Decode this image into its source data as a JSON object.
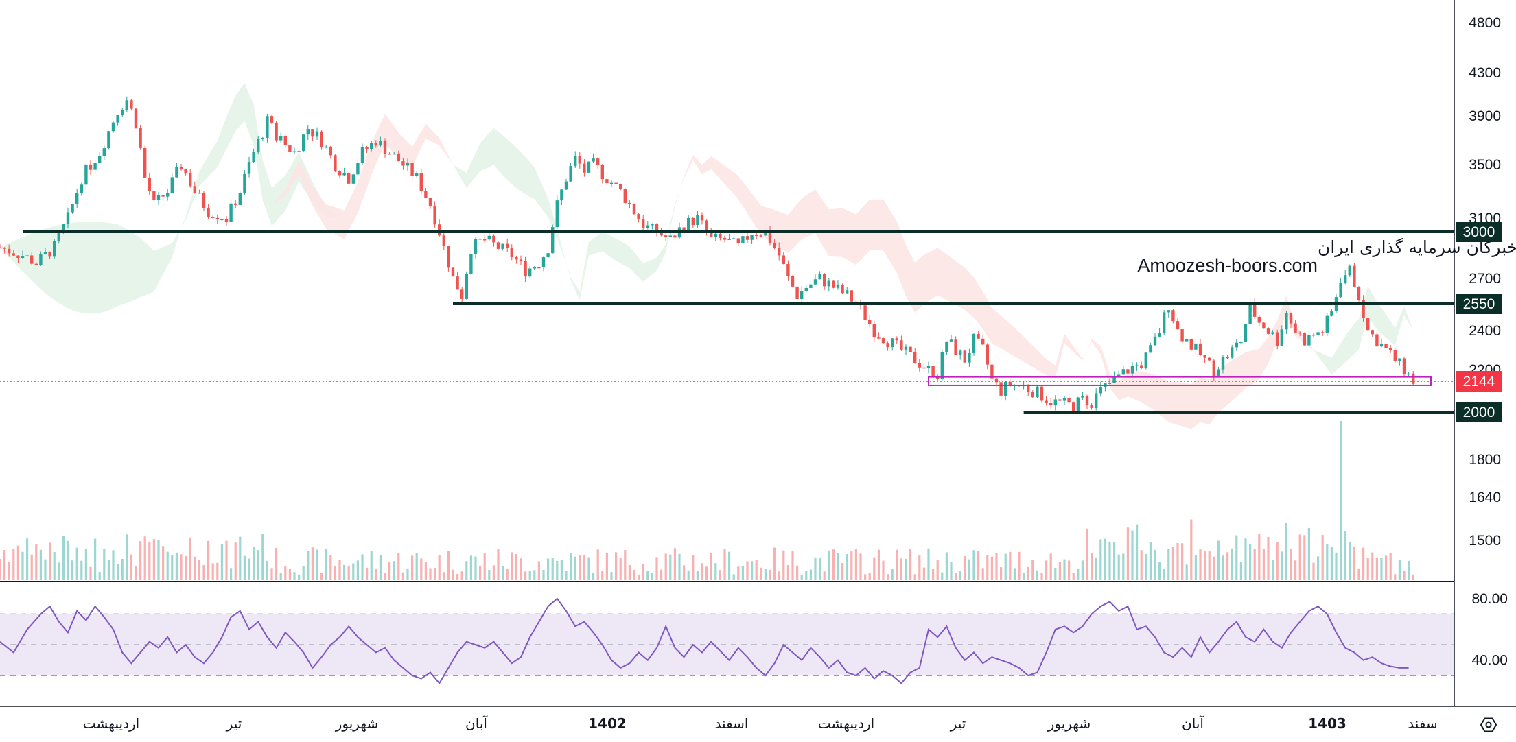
{
  "colors": {
    "up": "#26a69a",
    "down": "#ef5350",
    "level_line": "#0b2e28",
    "support_zone": "#c020c0",
    "current_price": "#f23645",
    "rsi_line": "#7e57c2",
    "rsi_band": "#ede7f6",
    "cloud_bull": "#e3f2e6",
    "cloud_bear": "#fde4e4",
    "axis_text": "#131722"
  },
  "watermark": {
    "line1": "انجمن خبرگان سرمایه گذاری ایران",
    "line2": "Amoozesh-boors.com"
  },
  "settings_icon": "hexagon-settings-icon",
  "chart_data": [
    {
      "type": "candlestick",
      "title": "",
      "y_axis_ticks": [
        "4800",
        "4300",
        "3900",
        "3500",
        "3100",
        "2700",
        "2400",
        "2200",
        "1800",
        "1640",
        "1500"
      ],
      "x_axis_labels": [
        {
          "label": "اردیبهشت",
          "bold": false
        },
        {
          "label": "تیر",
          "bold": false
        },
        {
          "label": "شهریور",
          "bold": false
        },
        {
          "label": "آبان",
          "bold": false
        },
        {
          "label": "1402",
          "bold": true
        },
        {
          "label": "اسفند",
          "bold": false
        },
        {
          "label": "اردیبهشت",
          "bold": false
        },
        {
          "label": "تیر",
          "bold": false
        },
        {
          "label": "شهریور",
          "bold": false
        },
        {
          "label": "آبان",
          "bold": false
        },
        {
          "label": "1403",
          "bold": true
        },
        {
          "label": "سفند",
          "bold": false
        }
      ],
      "price_path": [
        [
          0,
          2900
        ],
        [
          5,
          2850
        ],
        [
          8,
          2800
        ],
        [
          12,
          2900
        ],
        [
          15,
          3100
        ],
        [
          18,
          3400
        ],
        [
          22,
          3600
        ],
        [
          26,
          3950
        ],
        [
          28,
          4050
        ],
        [
          30,
          3850
        ],
        [
          32,
          3400
        ],
        [
          34,
          3200
        ],
        [
          37,
          3300
        ],
        [
          40,
          3500
        ],
        [
          43,
          3300
        ],
        [
          46,
          3150
        ],
        [
          50,
          3100
        ],
        [
          53,
          3300
        ],
        [
          56,
          3600
        ],
        [
          59,
          3850
        ],
        [
          62,
          3700
        ],
        [
          65,
          3600
        ],
        [
          68,
          3800
        ],
        [
          71,
          3700
        ],
        [
          74,
          3500
        ],
        [
          77,
          3400
        ],
        [
          80,
          3600
        ],
        [
          83,
          3700
        ],
        [
          86,
          3600
        ],
        [
          89,
          3500
        ],
        [
          92,
          3400
        ],
        [
          95,
          3200
        ],
        [
          98,
          2900
        ],
        [
          100,
          2700
        ],
        [
          102,
          2600
        ],
        [
          104,
          2900
        ],
        [
          107,
          2950
        ],
        [
          110,
          2900
        ],
        [
          113,
          2850
        ],
        [
          116,
          2750
        ],
        [
          119,
          2800
        ],
        [
          121,
          2900
        ],
        [
          123,
          3200
        ],
        [
          125,
          3400
        ],
        [
          127,
          3550
        ],
        [
          129,
          3450
        ],
        [
          131,
          3500
        ],
        [
          134,
          3400
        ],
        [
          137,
          3300
        ],
        [
          140,
          3150
        ],
        [
          142,
          3050
        ],
        [
          145,
          3000
        ],
        [
          148,
          2950
        ],
        [
          151,
          3050
        ],
        [
          154,
          3100
        ],
        [
          157,
          2950
        ],
        [
          160,
          2950
        ],
        [
          163,
          2900
        ],
        [
          166,
          3000
        ],
        [
          169,
          3000
        ],
        [
          172,
          2850
        ],
        [
          174,
          2700
        ],
        [
          176,
          2600
        ],
        [
          178,
          2650
        ],
        [
          181,
          2700
        ],
        [
          184,
          2650
        ],
        [
          187,
          2600
        ],
        [
          189,
          2550
        ],
        [
          191,
          2480
        ],
        [
          193,
          2400
        ],
        [
          196,
          2350
        ],
        [
          199,
          2300
        ],
        [
          202,
          2250
        ],
        [
          205,
          2200
        ],
        [
          207,
          2180
        ],
        [
          209,
          2350
        ],
        [
          211,
          2300
        ],
        [
          213,
          2250
        ],
        [
          215,
          2350
        ],
        [
          217,
          2300
        ],
        [
          219,
          2150
        ],
        [
          221,
          2100
        ],
        [
          223,
          2130
        ],
        [
          226,
          2120
        ],
        [
          229,
          2090
        ],
        [
          232,
          2050
        ],
        [
          235,
          2040
        ],
        [
          237,
          2030
        ],
        [
          239,
          2060
        ],
        [
          241,
          2050
        ],
        [
          243,
          2100
        ],
        [
          246,
          2150
        ],
        [
          249,
          2200
        ],
        [
          252,
          2230
        ],
        [
          254,
          2300
        ],
        [
          256,
          2400
        ],
        [
          258,
          2550
        ],
        [
          260,
          2400
        ],
        [
          262,
          2350
        ],
        [
          264,
          2300
        ],
        [
          266,
          2250
        ],
        [
          268,
          2200
        ],
        [
          270,
          2250
        ],
        [
          272,
          2300
        ],
        [
          274,
          2350
        ],
        [
          276,
          2530
        ],
        [
          278,
          2450
        ],
        [
          280,
          2400
        ],
        [
          282,
          2350
        ],
        [
          284,
          2500
        ],
        [
          286,
          2400
        ],
        [
          288,
          2350
        ],
        [
          290,
          2380
        ],
        [
          292,
          2400
        ],
        [
          294,
          2500
        ],
        [
          296,
          2700
        ],
        [
          298,
          2750
        ],
        [
          300,
          2600
        ],
        [
          302,
          2400
        ],
        [
          304,
          2350
        ],
        [
          306,
          2300
        ],
        [
          308,
          2250
        ],
        [
          310,
          2200
        ],
        [
          312,
          2144
        ]
      ],
      "horizontal_levels": [
        {
          "value": 3000,
          "label": "3000",
          "from_x": 5
        },
        {
          "value": 2550,
          "label": "2550",
          "from_x": 100
        },
        {
          "value": 2000,
          "label": "2000",
          "from_x": 226
        }
      ],
      "support_zone": {
        "low": 2125,
        "high": 2165,
        "from_x": 205
      },
      "current_price": {
        "value": 2144,
        "label": "2144"
      },
      "volume_spike_x": 296,
      "ylim": [
        1400,
        4900
      ]
    },
    {
      "type": "line",
      "title": "",
      "series_name": "",
      "y_axis_ticks": [
        "80.00",
        "40.00"
      ],
      "band": [
        30,
        70
      ],
      "midline": 50,
      "ylim": [
        18,
        84
      ],
      "path": [
        [
          0,
          52
        ],
        [
          3,
          45
        ],
        [
          6,
          60
        ],
        [
          9,
          70
        ],
        [
          11,
          75
        ],
        [
          13,
          65
        ],
        [
          15,
          58
        ],
        [
          17,
          72
        ],
        [
          19,
          66
        ],
        [
          21,
          75
        ],
        [
          23,
          68
        ],
        [
          25,
          60
        ],
        [
          27,
          45
        ],
        [
          29,
          38
        ],
        [
          31,
          45
        ],
        [
          33,
          52
        ],
        [
          35,
          48
        ],
        [
          37,
          55
        ],
        [
          39,
          45
        ],
        [
          41,
          50
        ],
        [
          43,
          42
        ],
        [
          45,
          38
        ],
        [
          47,
          45
        ],
        [
          49,
          55
        ],
        [
          51,
          68
        ],
        [
          53,
          72
        ],
        [
          55,
          60
        ],
        [
          57,
          65
        ],
        [
          59,
          55
        ],
        [
          61,
          48
        ],
        [
          63,
          58
        ],
        [
          65,
          52
        ],
        [
          67,
          45
        ],
        [
          69,
          35
        ],
        [
          71,
          42
        ],
        [
          73,
          50
        ],
        [
          75,
          55
        ],
        [
          77,
          62
        ],
        [
          79,
          55
        ],
        [
          81,
          50
        ],
        [
          83,
          45
        ],
        [
          85,
          48
        ],
        [
          87,
          40
        ],
        [
          89,
          35
        ],
        [
          91,
          30
        ],
        [
          93,
          28
        ],
        [
          95,
          32
        ],
        [
          97,
          25
        ],
        [
          99,
          35
        ],
        [
          101,
          45
        ],
        [
          103,
          52
        ],
        [
          105,
          50
        ],
        [
          107,
          48
        ],
        [
          109,
          52
        ],
        [
          111,
          45
        ],
        [
          113,
          38
        ],
        [
          115,
          42
        ],
        [
          117,
          55
        ],
        [
          119,
          65
        ],
        [
          121,
          75
        ],
        [
          123,
          80
        ],
        [
          125,
          72
        ],
        [
          127,
          62
        ],
        [
          129,
          65
        ],
        [
          131,
          58
        ],
        [
          133,
          50
        ],
        [
          135,
          40
        ],
        [
          137,
          35
        ],
        [
          139,
          38
        ],
        [
          141,
          45
        ],
        [
          143,
          40
        ],
        [
          145,
          48
        ],
        [
          147,
          62
        ],
        [
          149,
          48
        ],
        [
          151,
          42
        ],
        [
          153,
          50
        ],
        [
          155,
          45
        ],
        [
          157,
          52
        ],
        [
          159,
          46
        ],
        [
          161,
          40
        ],
        [
          163,
          48
        ],
        [
          165,
          42
        ],
        [
          167,
          35
        ],
        [
          169,
          30
        ],
        [
          171,
          38
        ],
        [
          173,
          50
        ],
        [
          175,
          45
        ],
        [
          177,
          40
        ],
        [
          179,
          48
        ],
        [
          181,
          42
        ],
        [
          183,
          35
        ],
        [
          185,
          40
        ],
        [
          187,
          32
        ],
        [
          189,
          30
        ],
        [
          191,
          35
        ],
        [
          193,
          28
        ],
        [
          195,
          33
        ],
        [
          197,
          30
        ],
        [
          199,
          25
        ],
        [
          201,
          32
        ],
        [
          203,
          35
        ],
        [
          205,
          60
        ],
        [
          207,
          55
        ],
        [
          209,
          62
        ],
        [
          211,
          48
        ],
        [
          213,
          40
        ],
        [
          215,
          45
        ],
        [
          217,
          38
        ],
        [
          219,
          42
        ],
        [
          221,
          40
        ],
        [
          223,
          38
        ],
        [
          225,
          35
        ],
        [
          227,
          30
        ],
        [
          229,
          32
        ],
        [
          231,
          45
        ],
        [
          233,
          60
        ],
        [
          235,
          62
        ],
        [
          237,
          58
        ],
        [
          239,
          62
        ],
        [
          241,
          70
        ],
        [
          243,
          75
        ],
        [
          245,
          78
        ],
        [
          247,
          72
        ],
        [
          249,
          75
        ],
        [
          251,
          60
        ],
        [
          253,
          62
        ],
        [
          255,
          55
        ],
        [
          257,
          45
        ],
        [
          259,
          42
        ],
        [
          261,
          48
        ],
        [
          263,
          42
        ],
        [
          265,
          55
        ],
        [
          267,
          45
        ],
        [
          269,
          52
        ],
        [
          271,
          60
        ],
        [
          273,
          65
        ],
        [
          275,
          55
        ],
        [
          277,
          52
        ],
        [
          279,
          60
        ],
        [
          281,
          52
        ],
        [
          283,
          48
        ],
        [
          285,
          58
        ],
        [
          287,
          65
        ],
        [
          289,
          72
        ],
        [
          291,
          75
        ],
        [
          293,
          70
        ],
        [
          295,
          58
        ],
        [
          297,
          48
        ],
        [
          299,
          45
        ],
        [
          301,
          40
        ],
        [
          303,
          42
        ],
        [
          305,
          38
        ],
        [
          307,
          36
        ],
        [
          309,
          35
        ],
        [
          311,
          35
        ]
      ]
    }
  ]
}
